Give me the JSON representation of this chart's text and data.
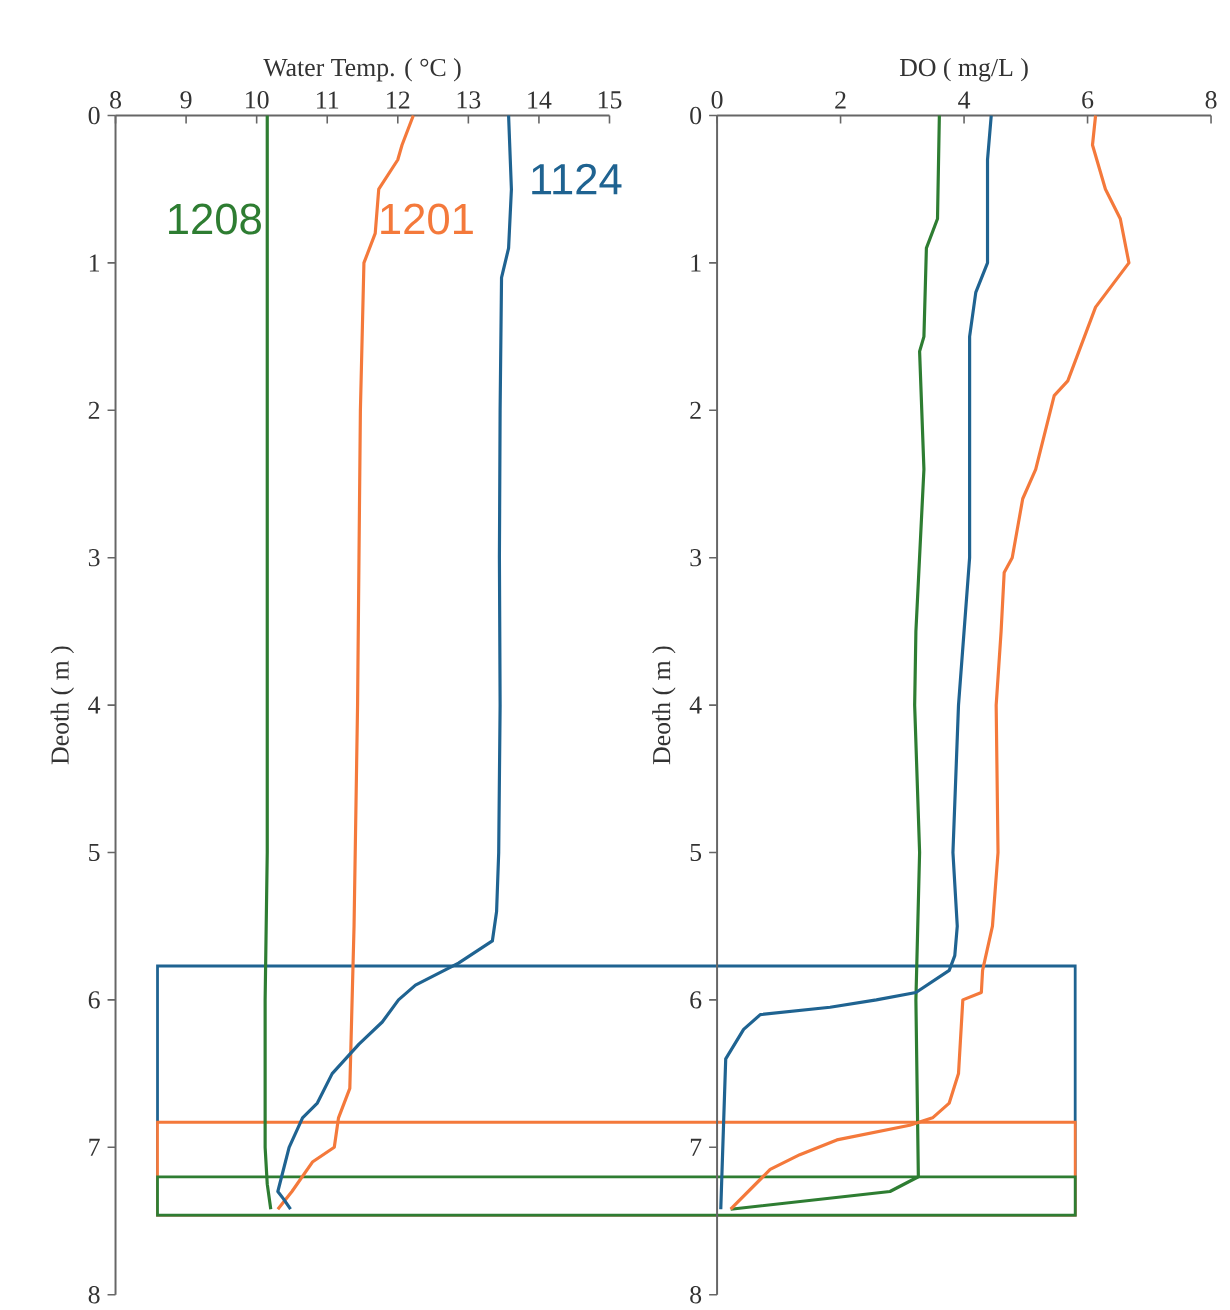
{
  "chart_data": [
    {
      "type": "line",
      "xlabel": "Water Temp. ( °C )",
      "ylabel": "Deoth ( m )",
      "xlim": [
        8,
        15
      ],
      "xticks": [
        8,
        9,
        10,
        11,
        12,
        13,
        14,
        15
      ],
      "ylim": [
        8,
        0
      ],
      "yticks": [
        0,
        1,
        2,
        3,
        4,
        5,
        6,
        7,
        8
      ],
      "series": [
        {
          "name": "1208",
          "color": "#2e7d32",
          "x": [
            10.15,
            10.15,
            10.15,
            10.15,
            10.12,
            10.12,
            10.15,
            10.2
          ],
          "values": [
            0,
            1,
            3,
            5,
            6,
            7,
            7.25,
            7.42
          ]
        },
        {
          "name": "1201",
          "color": "#f4793b",
          "x": [
            12.22,
            12.06,
            12.0,
            11.73,
            11.68,
            11.52,
            11.47,
            11.45,
            11.43,
            11.38,
            11.32,
            11.16,
            11.1,
            10.79,
            10.5,
            10.3
          ],
          "values": [
            0,
            0.2,
            0.3,
            0.5,
            0.8,
            1.0,
            2,
            3,
            4,
            5.5,
            6.6,
            6.8,
            7.0,
            7.1,
            7.3,
            7.42
          ]
        },
        {
          "name": "1124",
          "color": "#1f6391",
          "x": [
            13.57,
            13.61,
            13.57,
            13.47,
            13.45,
            13.44,
            13.45,
            13.43,
            13.4,
            13.34,
            12.86,
            12.25,
            12.01,
            11.78,
            11.45,
            11.07,
            10.86,
            10.65,
            10.46,
            10.3,
            10.38,
            10.48
          ],
          "values": [
            0,
            0.5,
            0.9,
            1.1,
            2,
            3,
            4,
            5,
            5.4,
            5.6,
            5.75,
            5.9,
            6.0,
            6.15,
            6.3,
            6.5,
            6.7,
            6.8,
            7.0,
            7.3,
            7.35,
            7.42
          ]
        }
      ],
      "bands": [
        {
          "axis": "y",
          "from": 5.77,
          "to": 7.46,
          "color": "#1f6391"
        },
        {
          "axis": "y",
          "from": 6.83,
          "to": 7.46,
          "color": "#f4793b"
        },
        {
          "axis": "y",
          "from": 7.2,
          "to": 7.46,
          "color": "#2e7d32"
        }
      ]
    },
    {
      "type": "line",
      "xlabel": "DO ( mg/L )",
      "ylabel": "Deoth ( m )",
      "xlim": [
        0,
        8
      ],
      "xticks": [
        0,
        2,
        4,
        6,
        8
      ],
      "ylim": [
        8,
        0
      ],
      "yticks": [
        0,
        1,
        2,
        3,
        4,
        5,
        6,
        7,
        8
      ],
      "series": [
        {
          "color": "#2e7d32",
          "x": [
            3.6,
            3.57,
            3.39,
            3.35,
            3.28,
            3.35,
            3.22,
            3.2,
            3.28,
            3.22,
            3.26,
            2.8,
            0.22
          ],
          "values": [
            0,
            0.7,
            0.9,
            1.5,
            1.6,
            2.4,
            3.5,
            4,
            5,
            6,
            7.2,
            7.3,
            7.42
          ]
        },
        {
          "color": "#f4793b",
          "x": [
            6.13,
            6.08,
            6.29,
            6.53,
            6.67,
            6.13,
            5.86,
            5.68,
            5.46,
            5.16,
            4.95,
            4.78,
            4.65,
            4.6,
            4.52,
            4.55,
            4.46,
            4.3,
            4.28,
            3.98,
            3.91,
            3.76,
            3.49,
            3.12,
            1.94,
            1.34,
            0.86,
            0.22
          ],
          "values": [
            0,
            0.2,
            0.5,
            0.7,
            1.0,
            1.3,
            1.6,
            1.8,
            1.9,
            2.4,
            2.6,
            3.0,
            3.1,
            3.5,
            4,
            5,
            5.5,
            5.8,
            5.95,
            6.0,
            6.5,
            6.7,
            6.8,
            6.85,
            6.95,
            7.05,
            7.15,
            7.42
          ]
        },
        {
          "color": "#1f6391",
          "x": [
            4.44,
            4.38,
            4.38,
            4.19,
            4.09,
            4.09,
            4.0,
            3.91,
            3.82,
            3.89,
            3.85,
            3.76,
            3.22,
            2.58,
            1.83,
            0.7,
            0.43,
            0.14,
            0.06
          ],
          "values": [
            0,
            0.3,
            1.0,
            1.2,
            1.5,
            3,
            3.5,
            4,
            5,
            5.5,
            5.7,
            5.8,
            5.95,
            6.0,
            6.05,
            6.1,
            6.2,
            6.4,
            7.42
          ]
        }
      ]
    }
  ]
}
